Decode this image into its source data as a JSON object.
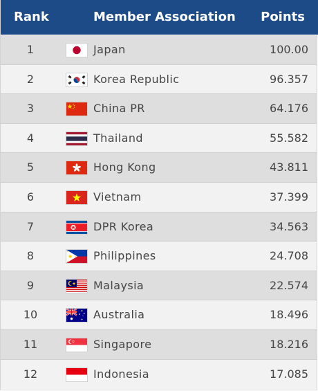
{
  "header": {
    "rank": "Rank",
    "member": "Member Association",
    "points": "Points",
    "background": "#1c4b88"
  },
  "rows": [
    {
      "rank": "1",
      "country": "Japan",
      "points": "100.00",
      "flag": "japan-flag-icon"
    },
    {
      "rank": "2",
      "country": "Korea Republic",
      "points": "96.357",
      "flag": "south-korea-flag-icon"
    },
    {
      "rank": "3",
      "country": "China PR",
      "points": "64.176",
      "flag": "china-flag-icon"
    },
    {
      "rank": "4",
      "country": "Thailand",
      "points": "55.582",
      "flag": "thailand-flag-icon"
    },
    {
      "rank": "5",
      "country": "Hong Kong",
      "points": "43.811",
      "flag": "hong-kong-flag-icon"
    },
    {
      "rank": "6",
      "country": "Vietnam",
      "points": "37.399",
      "flag": "vietnam-flag-icon"
    },
    {
      "rank": "7",
      "country": "DPR Korea",
      "points": "34.563",
      "flag": "north-korea-flag-icon"
    },
    {
      "rank": "8",
      "country": "Philippines",
      "points": "24.708",
      "flag": "philippines-flag-icon"
    },
    {
      "rank": "9",
      "country": "Malaysia",
      "points": "22.574",
      "flag": "malaysia-flag-icon"
    },
    {
      "rank": "10",
      "country": "Australia",
      "points": "18.496",
      "flag": "australia-flag-icon"
    },
    {
      "rank": "11",
      "country": "Singapore",
      "points": "18.216",
      "flag": "singapore-flag-icon"
    },
    {
      "rank": "12",
      "country": "Indonesia",
      "points": "17.085",
      "flag": "indonesia-flag-icon"
    }
  ]
}
